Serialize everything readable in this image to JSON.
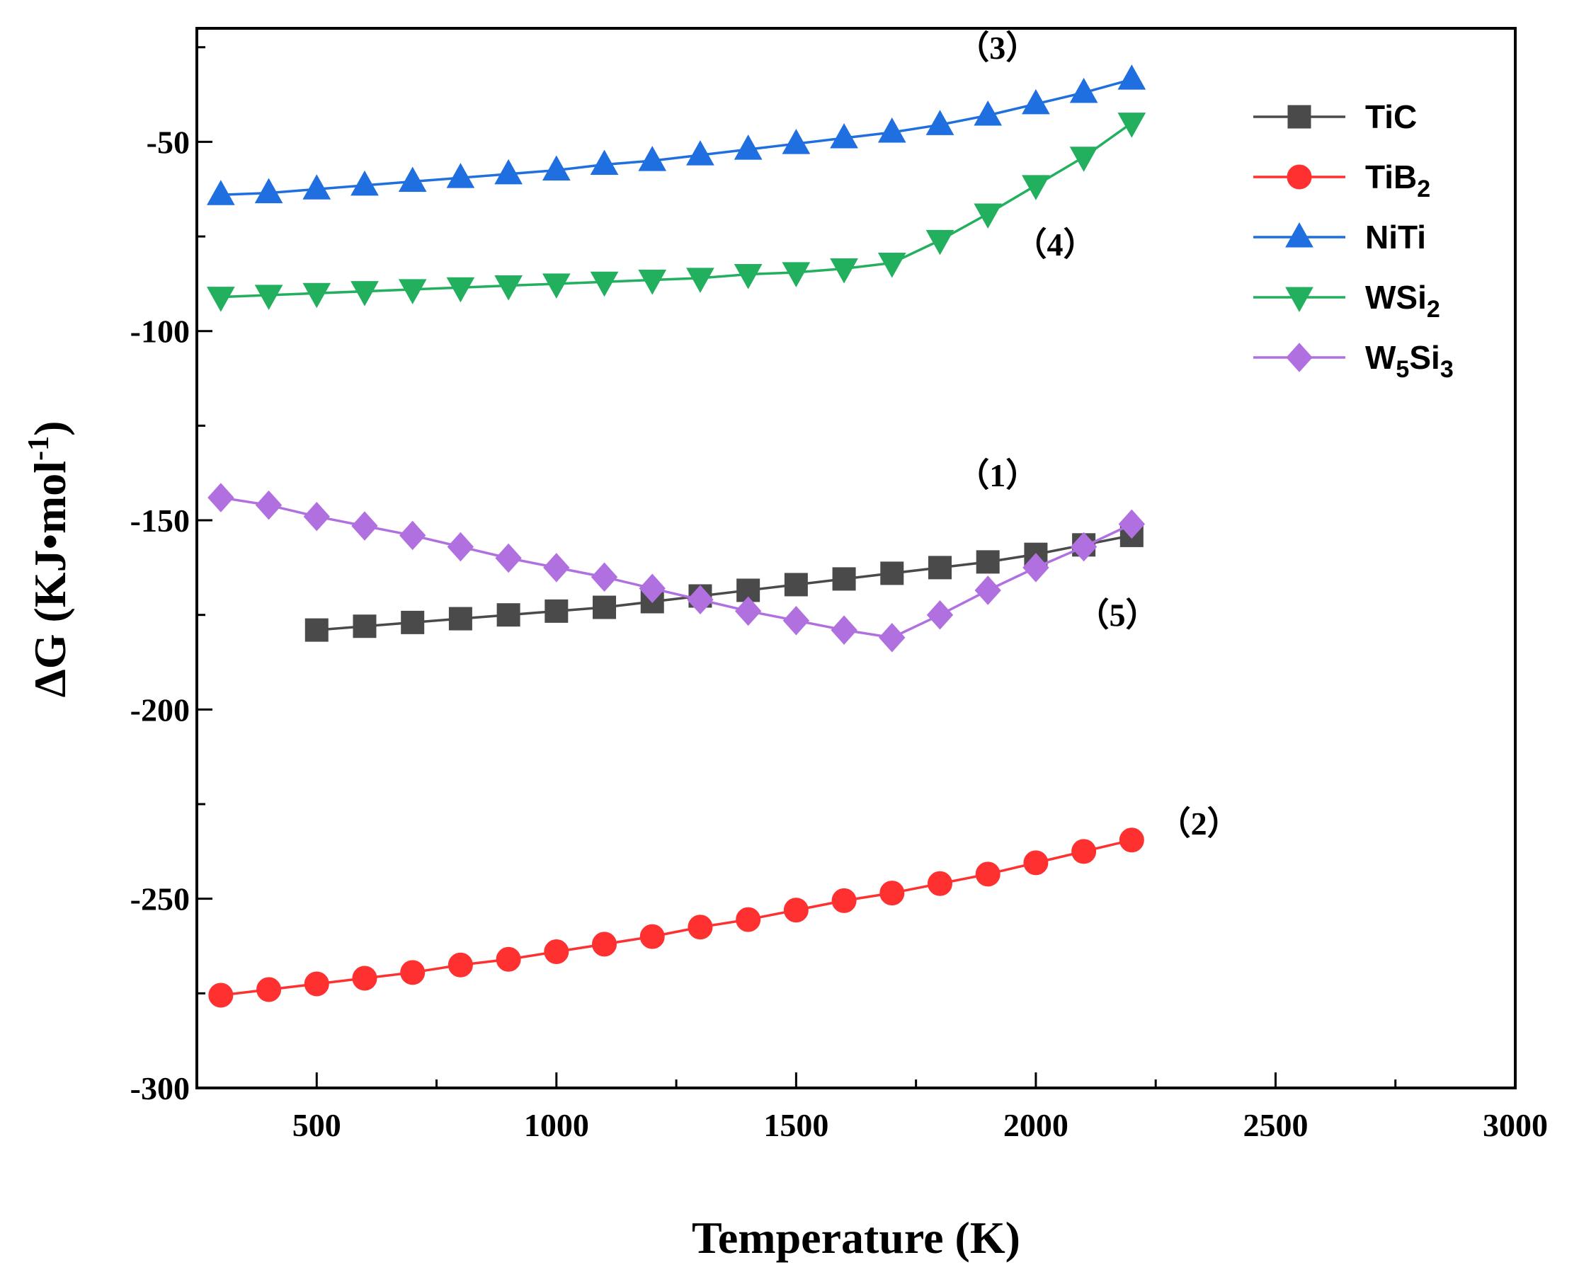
{
  "chart_data": {
    "type": "line",
    "title": "",
    "xlabel": "Temperature (K)",
    "ylabel": "ΔG (KJ•mol",
    "ylabel_sup": "-1",
    "ylabel_close": ")",
    "xlim": [
      250,
      3000
    ],
    "ylim": [
      -300,
      -20
    ],
    "xticks": [
      500,
      1000,
      1500,
      2000,
      2500,
      3000
    ],
    "xtick_labels": [
      "500",
      "1000",
      "1500",
      "2000",
      "2500",
      "3000"
    ],
    "yticks": [
      -50,
      -100,
      -150,
      -200,
      -250,
      -300
    ],
    "ytick_labels": [
      "-50",
      "-100",
      "-150",
      "-200",
      "-250",
      "-300"
    ],
    "grid": false,
    "legend_position": "top-right",
    "series": [
      {
        "name": "TiC",
        "name_base": "TiC",
        "name_sub": "",
        "color": "#4a4a4a",
        "marker": "square",
        "x": [
          500,
          600,
          700,
          800,
          900,
          1000,
          1100,
          1200,
          1300,
          1400,
          1500,
          1600,
          1700,
          1800,
          1900,
          2000,
          2100,
          2200
        ],
        "y": [
          -179,
          -178,
          -177,
          -176,
          -175,
          -174,
          -173,
          -171.5,
          -170,
          -168.5,
          -167,
          -165.5,
          -164,
          -162.5,
          -161,
          -159,
          -156.5,
          -154
        ]
      },
      {
        "name": "TiB2",
        "name_base": "TiB",
        "name_sub": "2",
        "color": "#ff3030",
        "marker": "circle",
        "x": [
          300,
          400,
          500,
          600,
          700,
          800,
          900,
          1000,
          1100,
          1200,
          1300,
          1400,
          1500,
          1600,
          1700,
          1800,
          1900,
          2000,
          2100,
          2200
        ],
        "y": [
          -275.5,
          -274,
          -272.5,
          -271,
          -269.5,
          -267.5,
          -266,
          -264,
          -262,
          -260,
          -257.5,
          -255.5,
          -253,
          -250.5,
          -248.5,
          -246,
          -243.5,
          -240.5,
          -237.5,
          -234.5
        ]
      },
      {
        "name": "NiTi",
        "name_base": "NiTi",
        "name_sub": "",
        "color": "#1f6fe0",
        "marker": "triangle-up",
        "x": [
          300,
          400,
          500,
          600,
          700,
          800,
          900,
          1000,
          1100,
          1200,
          1300,
          1400,
          1500,
          1600,
          1700,
          1800,
          1900,
          2000,
          2100,
          2200
        ],
        "y": [
          -64,
          -63.5,
          -62.5,
          -61.5,
          -60.5,
          -59.5,
          -58.5,
          -57.5,
          -56,
          -55,
          -53.5,
          -52,
          -50.5,
          -49,
          -47.5,
          -45.5,
          -43,
          -40,
          -37,
          -33.5
        ]
      },
      {
        "name": "WSi2",
        "name_base": "WSi",
        "name_sub": "2",
        "color": "#22b05e",
        "marker": "triangle-down",
        "x": [
          300,
          400,
          500,
          600,
          700,
          800,
          900,
          1000,
          1100,
          1200,
          1300,
          1400,
          1500,
          1600,
          1700,
          1800,
          1900,
          2000,
          2100,
          2200
        ],
        "y": [
          -91,
          -90.5,
          -90,
          -89.5,
          -89,
          -88.5,
          -88,
          -87.5,
          -87,
          -86.5,
          -86,
          -85,
          -84.5,
          -83.5,
          -82,
          -76,
          -69,
          -61.5,
          -54,
          -45
        ]
      },
      {
        "name": "W5Si3",
        "name_base": "W",
        "name_sub": "5",
        "name_base2": "Si",
        "name_sub2": "3",
        "color": "#b070e0",
        "marker": "diamond",
        "x": [
          300,
          400,
          500,
          600,
          700,
          800,
          900,
          1000,
          1100,
          1200,
          1300,
          1400,
          1500,
          1600,
          1700,
          1800,
          1900,
          2000,
          2100,
          2200
        ],
        "y": [
          -144,
          -146,
          -149,
          -151.5,
          -154,
          -157,
          -160,
          -162.5,
          -165,
          -168,
          -171,
          -174,
          -176.5,
          -179,
          -181,
          -175,
          -168.5,
          -162.5,
          -157,
          -151
        ]
      }
    ],
    "annotations": [
      {
        "text": "（1）",
        "x": 1920,
        "y": -141
      },
      {
        "text": "（2）",
        "x": 2340,
        "y": -233
      },
      {
        "text": "（3）",
        "x": 1920,
        "y": -28
      },
      {
        "text": "（4）",
        "x": 2040,
        "y": -80
      },
      {
        "text": "（5）",
        "x": 2170,
        "y": -178
      }
    ]
  }
}
